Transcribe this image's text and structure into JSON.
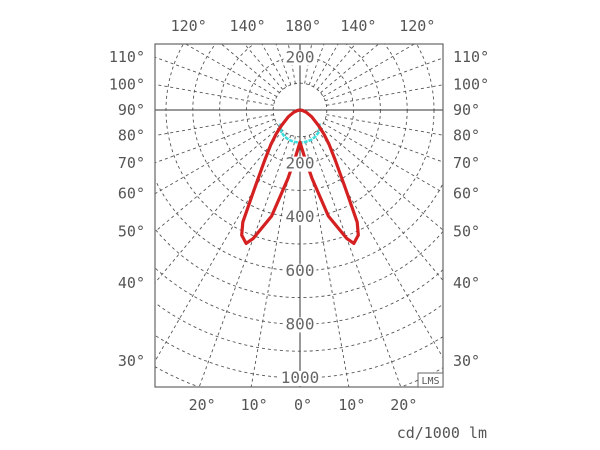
{
  "chart_data": {
    "type": "polar",
    "unit_label": "cd/1000 lm",
    "watermark": "LMS",
    "radial_ticks": [
      200,
      400,
      600,
      800,
      1000
    ],
    "radial_grid_step": 100,
    "angular_grid_step_deg": 10,
    "angle_labels": {
      "top": [
        "120°",
        "140°",
        "180°",
        "140°",
        "120°"
      ],
      "left": [
        "110°",
        "100°",
        "90°",
        "80°",
        "70°",
        "60°",
        "50°",
        "40°",
        "30°"
      ],
      "right": [
        "110°",
        "100°",
        "90°",
        "80°",
        "70°",
        "60°",
        "50°",
        "40°",
        "30°"
      ],
      "bottom": [
        "20°",
        "10°",
        "0°",
        "10°",
        "20°"
      ]
    },
    "grid": true,
    "series": [
      {
        "color": "#d42020",
        "gamma_deg": [
          0,
          5,
          10,
          15,
          20,
          22,
          25,
          27,
          30,
          35,
          40,
          45,
          50,
          60,
          70,
          80,
          90
        ],
        "intensity": [
          120,
          170,
          260,
          410,
          510,
          537,
          515,
          470,
          340,
          230,
          170,
          125,
          90,
          50,
          25,
          10,
          0
        ]
      },
      {
        "color": "#40dde0",
        "gamma_deg": [
          0,
          10,
          20,
          30,
          40,
          50,
          55
        ],
        "intensity": [
          122,
          121,
          119,
          115,
          108,
          96,
          88
        ]
      }
    ]
  }
}
